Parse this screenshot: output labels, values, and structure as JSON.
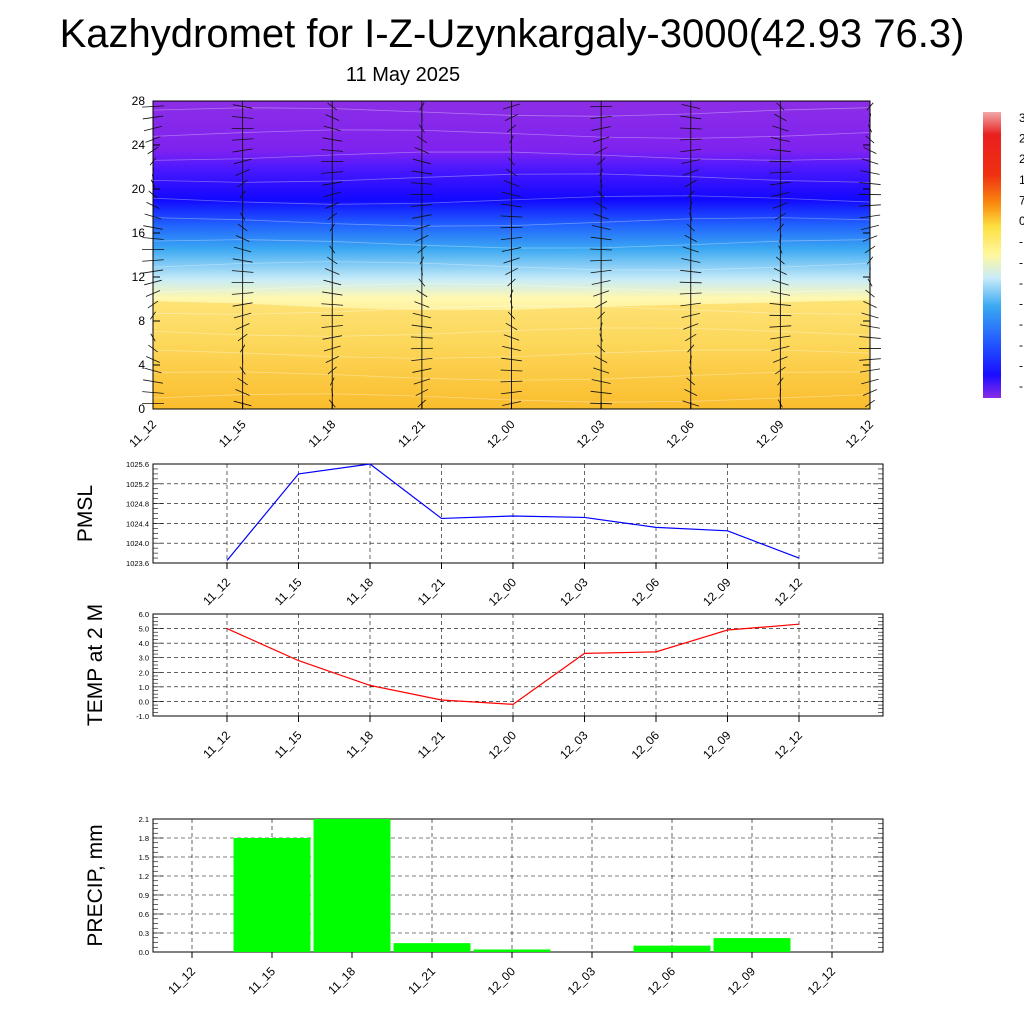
{
  "header": {
    "title": "Kazhydromet for I-Z-Uzynkargaly-3000(42.93 76.3)",
    "subtitle": "11 May 2025"
  },
  "chart_data": [
    {
      "type": "heatmap",
      "ylim": [
        0,
        28
      ],
      "yticks": [
        "0",
        "4",
        "8",
        "12",
        "16",
        "20",
        "24",
        "28"
      ],
      "x": [
        "11_12",
        "11_15",
        "11_18",
        "11_21",
        "12_00",
        "12_03",
        "12_06",
        "12_09",
        "12_12"
      ],
      "freezing_level": [
        9.8,
        9.6,
        9.2,
        9.0,
        9.0,
        9.3,
        9.5,
        9.7,
        9.9
      ],
      "colorbar_labels": [
        "3",
        "2",
        "2",
        "1",
        "7",
        "0",
        "-",
        "-",
        "-",
        "-",
        "-",
        "-",
        "-",
        "-"
      ],
      "colors": {
        "warm": "#f9a30a",
        "cold": "#1e10ff",
        "top": "#8a2de8"
      }
    },
    {
      "type": "line",
      "ylabel": "PMSL",
      "x": [
        "11_12",
        "11_15",
        "11_18",
        "11_21",
        "12_00",
        "12_03",
        "12_06",
        "12_09",
        "12_12"
      ],
      "values": [
        1023.65,
        1025.4,
        1025.6,
        1024.5,
        1024.55,
        1024.52,
        1024.32,
        1024.25,
        1023.7
      ],
      "ylim": [
        1023.6,
        1025.6
      ],
      "yticks": [
        "1023.6",
        "1024.0",
        "1024.4",
        "1024.8",
        "1025.2",
        "1025.6"
      ],
      "color": "#0000ff"
    },
    {
      "type": "line",
      "ylabel": "TEMP at 2 M",
      "x": [
        "11_12",
        "11_15",
        "11_18",
        "11_21",
        "12_00",
        "12_03",
        "12_06",
        "12_09",
        "12_12"
      ],
      "values": [
        5.0,
        2.8,
        1.1,
        0.1,
        -0.2,
        3.3,
        3.4,
        4.9,
        5.3
      ],
      "ylim": [
        -1.0,
        6.0
      ],
      "yticks": [
        "-1.0",
        "0.0",
        "1.0",
        "2.0",
        "3.0",
        "4.0",
        "5.0",
        "6.0"
      ],
      "color": "#ff0000"
    },
    {
      "type": "bar",
      "ylabel": "PRECIP, mm",
      "x": [
        "11_12",
        "11_15",
        "11_18",
        "11_21",
        "12_00",
        "12_03",
        "12_06",
        "12_09",
        "12_12"
      ],
      "values": [
        0,
        1.8,
        2.1,
        0.14,
        0.04,
        0,
        0.1,
        0.22,
        0
      ],
      "ylim": [
        0,
        2.1
      ],
      "yticks": [
        "0.0",
        "0.3",
        "0.6",
        "0.9",
        "1.2",
        "1.5",
        "1.8",
        "2.1"
      ],
      "color": "#00ff00"
    }
  ]
}
